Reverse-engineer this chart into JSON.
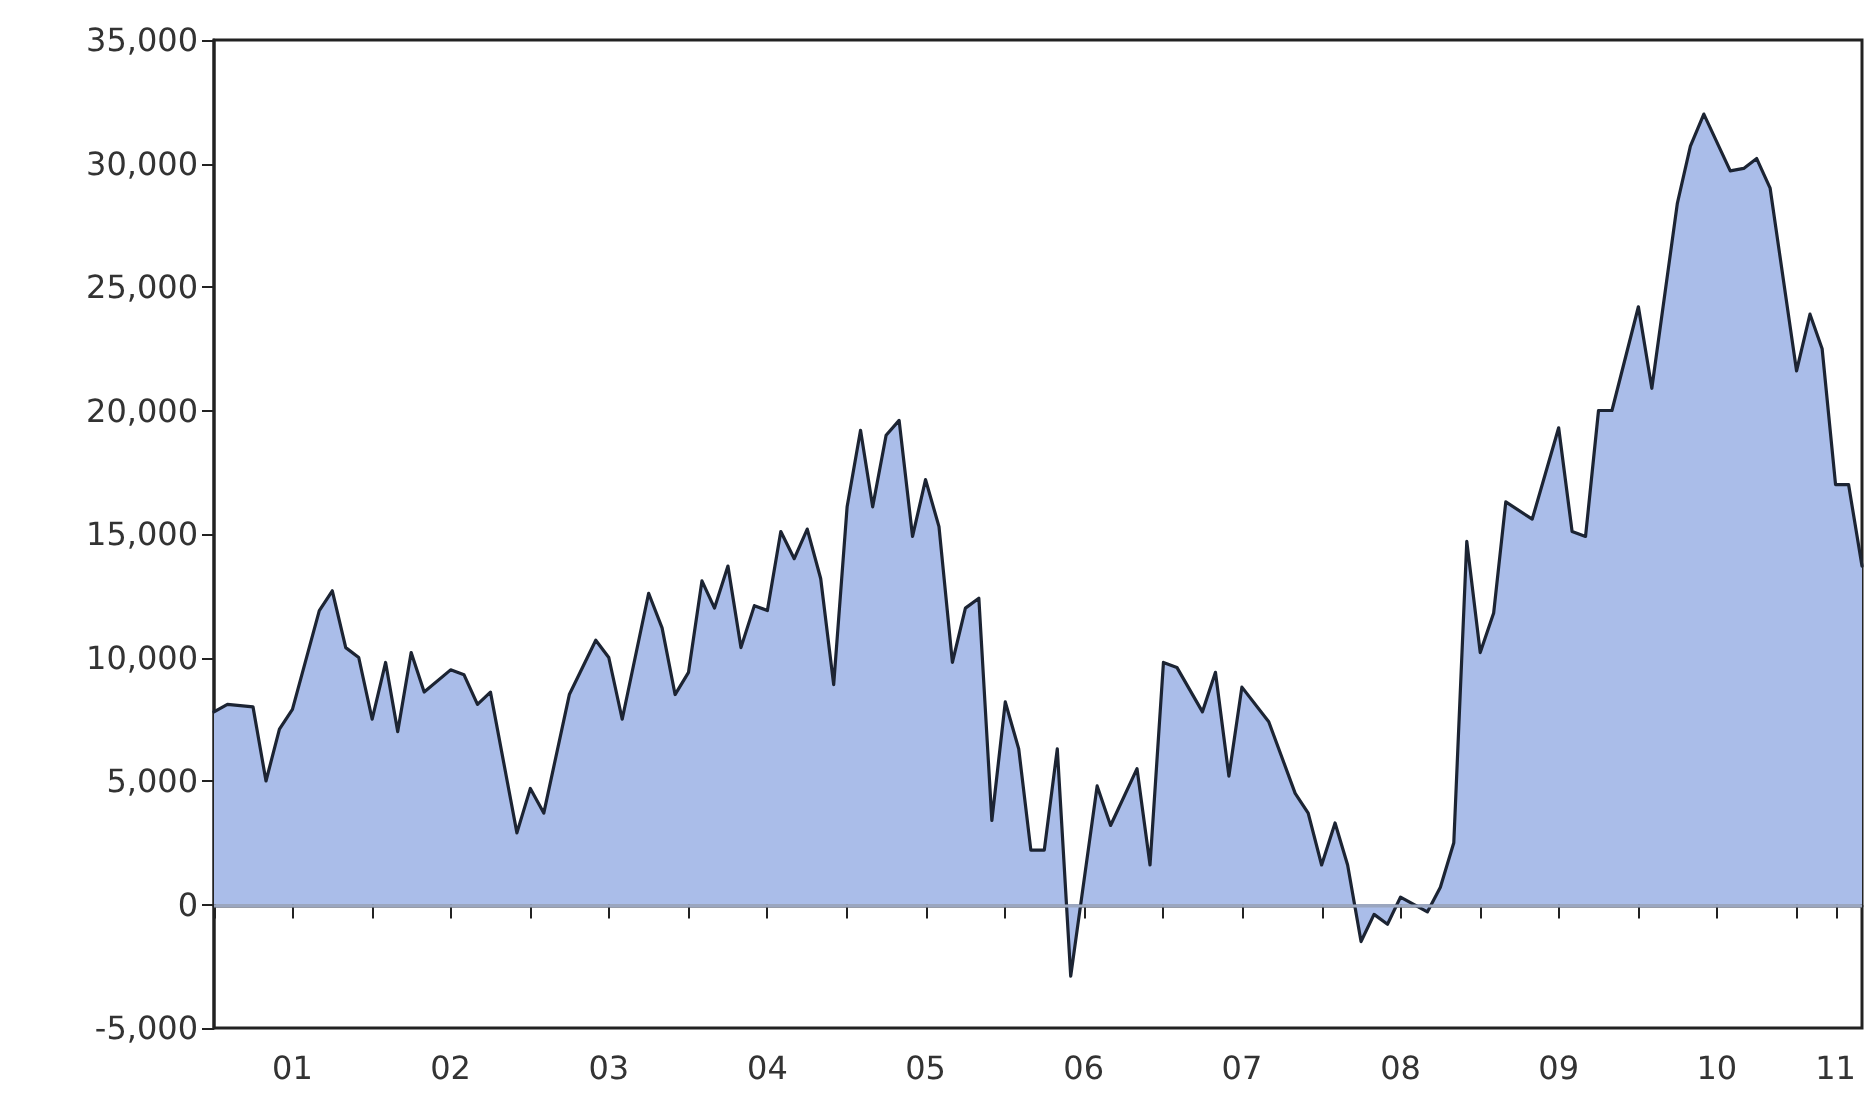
{
  "chart_data": {
    "type": "area",
    "x": [
      "2001-01",
      "2001-02",
      "2001-04",
      "2001-05",
      "2001-06",
      "2001-07",
      "2001-09",
      "2001-10",
      "2001-11",
      "2001-12",
      "2002-01",
      "2002-02",
      "2002-03",
      "2002-04",
      "2002-05",
      "2002-07",
      "2002-08",
      "2002-09",
      "2002-10",
      "2002-12",
      "2003-01",
      "2003-02",
      "2003-04",
      "2003-06",
      "2003-07",
      "2003-08",
      "2003-10",
      "2003-11",
      "2003-12",
      "2004-01",
      "2004-02",
      "2004-03",
      "2004-04",
      "2004-05",
      "2004-06",
      "2004-07",
      "2004-08",
      "2004-09",
      "2004-10",
      "2004-11",
      "2004-12",
      "2005-01",
      "2005-02",
      "2005-03",
      "2005-04",
      "2005-05",
      "2005-06",
      "2005-07",
      "2005-08",
      "2005-09",
      "2005-10",
      "2005-11",
      "2005-12",
      "2006-01",
      "2006-02",
      "2006-03",
      "2006-04",
      "2006-05",
      "2006-06",
      "2006-08",
      "2006-09",
      "2006-11",
      "2006-12",
      "2007-01",
      "2007-02",
      "2007-04",
      "2007-05",
      "2007-06",
      "2007-07",
      "2007-09",
      "2007-11",
      "2007-12",
      "2008-01",
      "2008-02",
      "2008-03",
      "2008-04",
      "2008-05",
      "2008-06",
      "2008-07",
      "2008-09",
      "2008-10",
      "2008-11",
      "2008-12",
      "2009-01",
      "2009-02",
      "2009-03",
      "2009-05",
      "2009-07",
      "2009-08",
      "2009-09",
      "2009-10",
      "2009-11",
      "2010-01",
      "2010-02",
      "2010-04",
      "2010-05",
      "2010-06",
      "2010-08",
      "2010-09",
      "2010-10",
      "2010-11",
      "2011-01",
      "2011-02",
      "2011-03",
      "2011-04",
      "2011-05",
      "2011-06"
    ],
    "values": [
      7800,
      8100,
      8000,
      5000,
      7100,
      7900,
      11900,
      12700,
      10400,
      10000,
      7500,
      9800,
      7000,
      10200,
      8600,
      9500,
      9300,
      8100,
      8600,
      2900,
      4700,
      3700,
      8500,
      10700,
      10000,
      7500,
      12600,
      11200,
      8500,
      9400,
      13100,
      12000,
      13700,
      10400,
      12100,
      11900,
      15100,
      14000,
      15200,
      13200,
      8900,
      16100,
      19200,
      16100,
      19000,
      19600,
      14900,
      17200,
      15300,
      9800,
      12000,
      12400,
      3400,
      8200,
      6300,
      2200,
      2200,
      6300,
      -2900,
      4800,
      3200,
      5500,
      1600,
      9800,
      9600,
      7800,
      9400,
      5200,
      8800,
      7400,
      4500,
      3700,
      1600,
      3300,
      1600,
      -1500,
      -400,
      -800,
      300,
      -300,
      700,
      2500,
      14700,
      10200,
      11800,
      16300,
      15600,
      19300,
      15100,
      14900,
      20000,
      20000,
      24200,
      20900,
      28400,
      30700,
      32000,
      29700,
      29800,
      30200,
      29000,
      21600,
      23900,
      22500,
      17000,
      17000,
      13700
    ],
    "color": "#aabde9",
    "xlim": [
      "2001-01",
      "2011-06"
    ],
    "xticks": [
      {
        "value": "2001-01",
        "label": null
      },
      {
        "value": "2001-07",
        "label": "01"
      },
      {
        "value": "2002-01",
        "label": null
      },
      {
        "value": "2002-07",
        "label": "02"
      },
      {
        "value": "2003-01",
        "label": null
      },
      {
        "value": "2003-07",
        "label": "03"
      },
      {
        "value": "2004-01",
        "label": null
      },
      {
        "value": "2004-07",
        "label": "04"
      },
      {
        "value": "2005-01",
        "label": null
      },
      {
        "value": "2005-07",
        "label": "05"
      },
      {
        "value": "2006-01",
        "label": null
      },
      {
        "value": "2006-07",
        "label": "06"
      },
      {
        "value": "2007-01",
        "label": null
      },
      {
        "value": "2007-07",
        "label": "07"
      },
      {
        "value": "2008-01",
        "label": null
      },
      {
        "value": "2008-07",
        "label": "08"
      },
      {
        "value": "2009-01",
        "label": null
      },
      {
        "value": "2009-07",
        "label": "09"
      },
      {
        "value": "2010-01",
        "label": null
      },
      {
        "value": "2010-07",
        "label": "10"
      },
      {
        "value": "2011-01",
        "label": null
      },
      {
        "value": "2011-04",
        "label": "11"
      }
    ],
    "ylim": [
      -5000,
      35000
    ],
    "yticks": [
      {
        "value": -5000,
        "label": "-5,000"
      },
      {
        "value": 0,
        "label": "0"
      },
      {
        "value": 5000,
        "label": "5,000"
      },
      {
        "value": 10000,
        "label": "10,000"
      },
      {
        "value": 15000,
        "label": "15,000"
      },
      {
        "value": 20000,
        "label": "20,000"
      },
      {
        "value": 25000,
        "label": "25,000"
      },
      {
        "value": 30000,
        "label": "30,000"
      },
      {
        "value": 35000,
        "label": "35,000"
      }
    ],
    "ref_lines": [
      {
        "axis": "y",
        "value": 0,
        "color": "#9aa6c0"
      }
    ],
    "grid": false,
    "marker": "none",
    "line_style": "solid"
  }
}
